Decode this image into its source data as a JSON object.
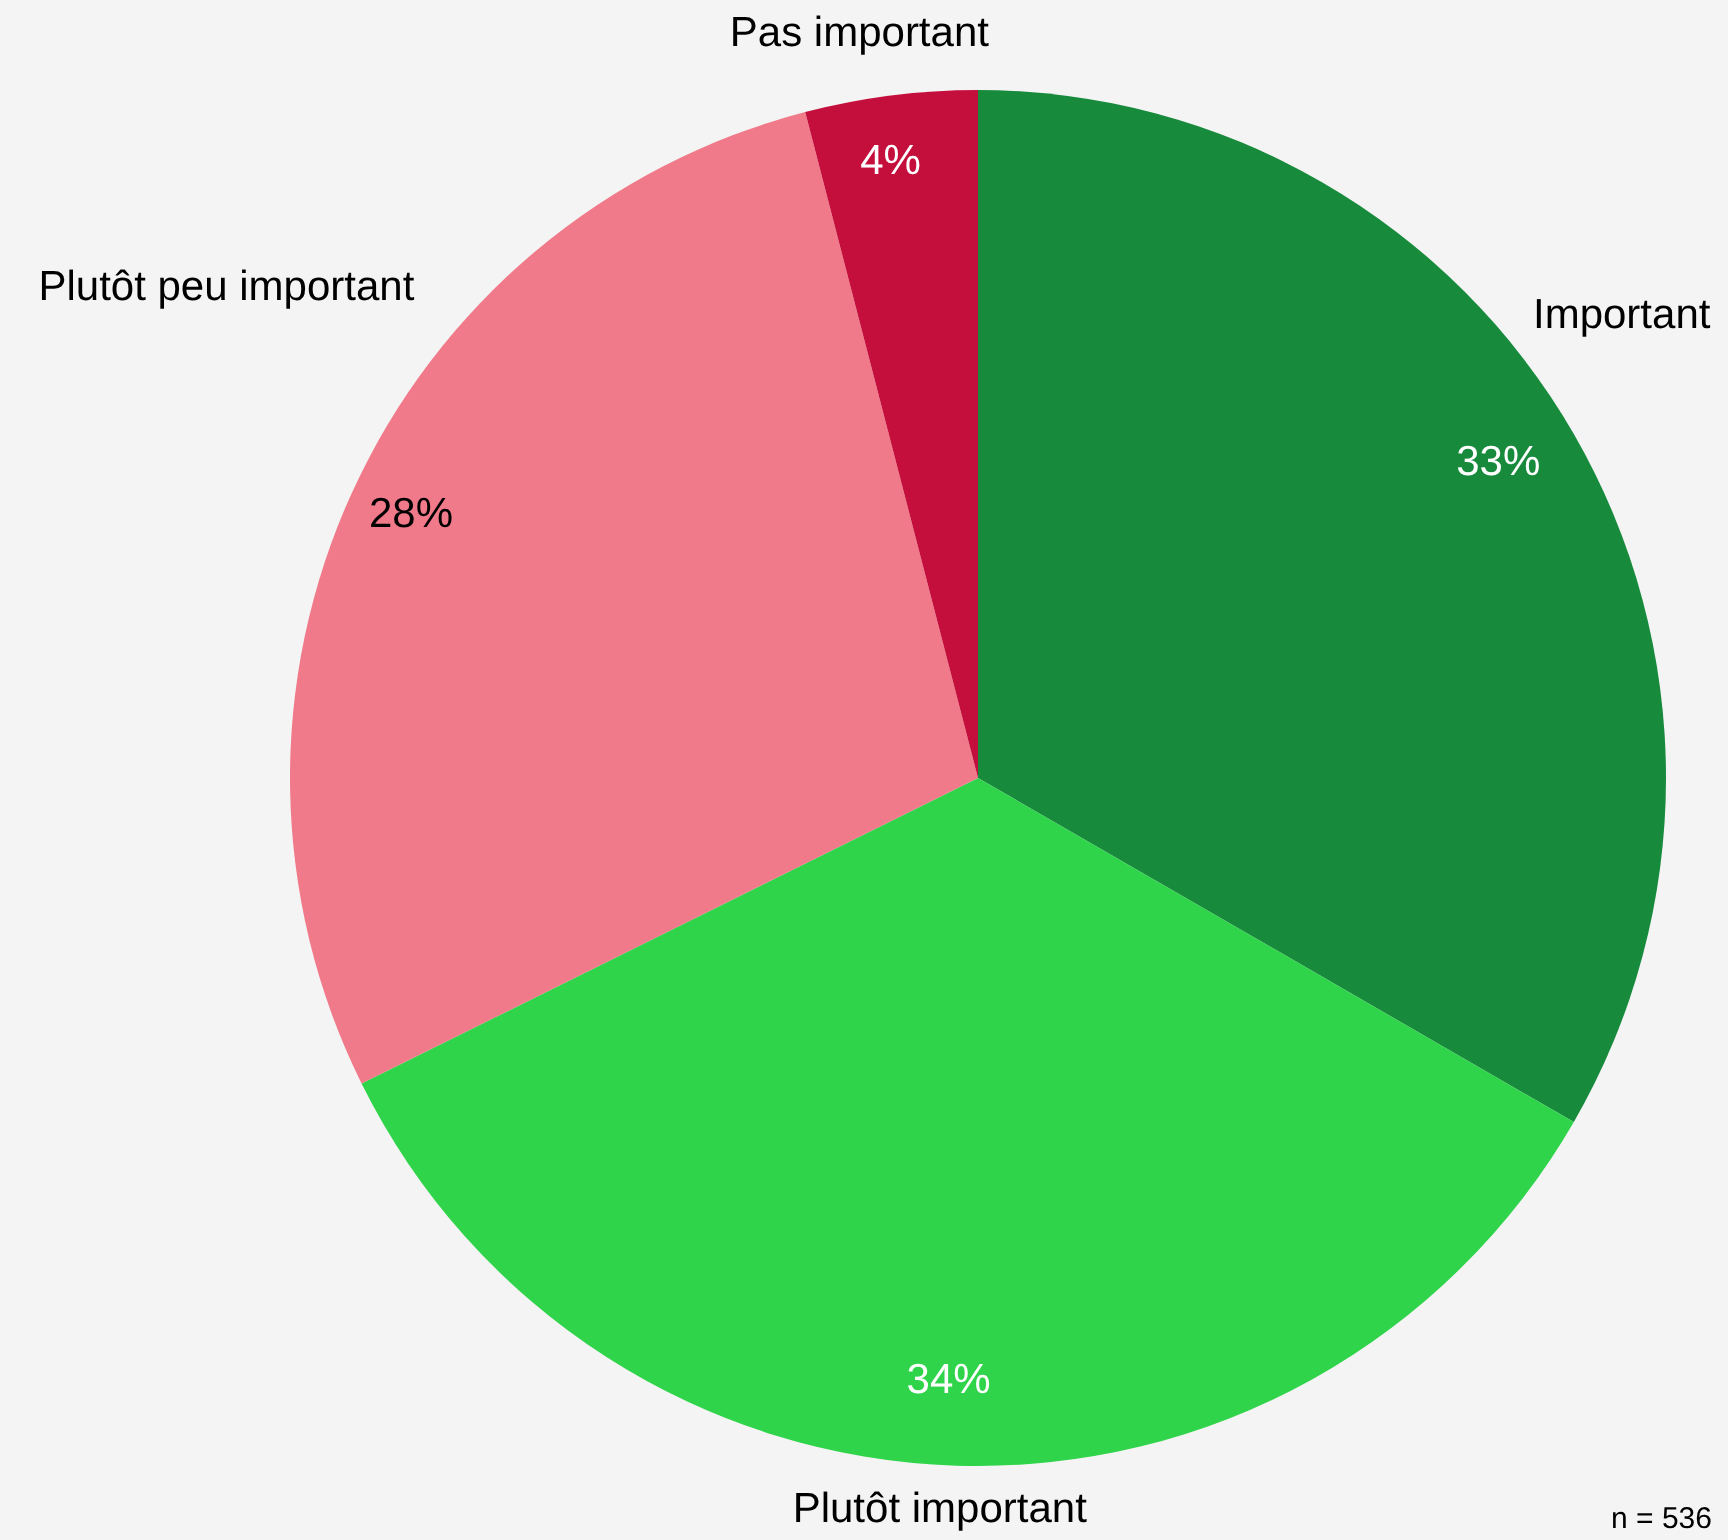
{
  "chart_data": {
    "type": "pie",
    "categories": [
      "Important",
      "Plutôt important",
      "Plutôt peu important",
      "Pas important"
    ],
    "values": [
      33,
      34,
      28,
      4
    ],
    "colors": [
      "#178a3c",
      "#2fd44a",
      "#f07a8a",
      "#c40e3c"
    ],
    "value_labels": [
      "33%",
      "34%",
      "28%",
      "4%"
    ],
    "annotations": [
      "n = 536"
    ]
  }
}
